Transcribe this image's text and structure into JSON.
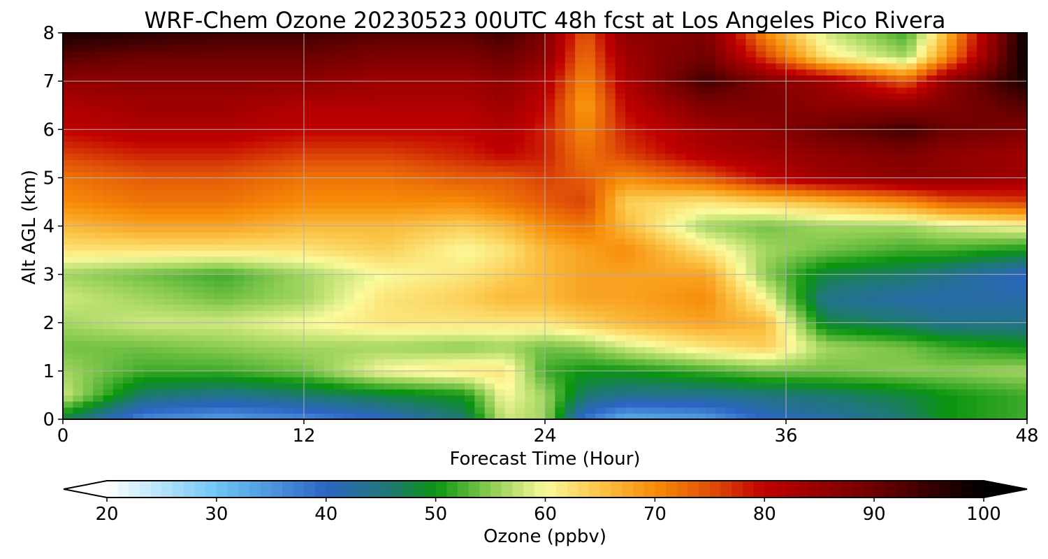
{
  "chart_data": {
    "type": "heatmap",
    "title": "WRF-Chem Ozone  20230523 00UTC 48h fcst at Los Angeles Pico Rivera",
    "xlabel": "Forecast Time (Hour)",
    "ylabel": "Alt AGL (km)",
    "xlim": [
      0,
      48
    ],
    "ylim": [
      0,
      8
    ],
    "x_ticks": [
      0,
      12,
      24,
      36,
      48
    ],
    "y_ticks": [
      0,
      1,
      2,
      3,
      4,
      5,
      6,
      7,
      8
    ],
    "grid": true,
    "colorbar": {
      "label": "Ozone  (ppbv)",
      "range": [
        20,
        100
      ],
      "ticks": [
        20,
        30,
        40,
        50,
        60,
        70,
        80,
        90,
        100
      ],
      "extend": "both",
      "stops": [
        {
          "v": 20,
          "color": "#ffffff"
        },
        {
          "v": 30,
          "color": "#6ec6f5"
        },
        {
          "v": 40,
          "color": "#2c64c4"
        },
        {
          "v": 46,
          "color": "#1e7a70"
        },
        {
          "v": 50,
          "color": "#0a9410"
        },
        {
          "v": 55,
          "color": "#8ccc52"
        },
        {
          "v": 60,
          "color": "#fbfa9b"
        },
        {
          "v": 65,
          "color": "#fbc447"
        },
        {
          "v": 70,
          "color": "#f78c08"
        },
        {
          "v": 75,
          "color": "#e05008"
        },
        {
          "v": 80,
          "color": "#c00000"
        },
        {
          "v": 90,
          "color": "#6e0000"
        },
        {
          "v": 100,
          "color": "#000000"
        }
      ]
    },
    "x": [
      0,
      4,
      8,
      12,
      16,
      20,
      22,
      24,
      26,
      28,
      32,
      35,
      38,
      42,
      44,
      48
    ],
    "y": [
      0,
      0.5,
      1,
      1.5,
      2,
      2.5,
      3,
      3.5,
      4,
      4.5,
      5,
      5.5,
      6,
      6.5,
      7,
      7.5,
      8
    ],
    "z": [
      [
        48,
        36,
        34,
        36,
        40,
        46,
        58,
        56,
        38,
        32,
        34,
        40,
        42,
        46,
        50,
        52
      ],
      [
        58,
        46,
        44,
        46,
        48,
        50,
        60,
        56,
        46,
        44,
        44,
        45,
        46,
        48,
        50,
        52
      ],
      [
        56,
        52,
        52,
        54,
        60,
        62,
        62,
        52,
        50,
        50,
        52,
        54,
        54,
        55,
        55,
        56
      ],
      [
        54,
        54,
        55,
        56,
        56,
        55,
        56,
        54,
        55,
        58,
        62,
        64,
        56,
        54,
        52,
        50
      ],
      [
        56,
        58,
        58,
        60,
        62,
        62,
        62,
        62,
        64,
        66,
        68,
        66,
        48,
        46,
        44,
        44
      ],
      [
        58,
        56,
        54,
        56,
        62,
        64,
        66,
        66,
        68,
        68,
        70,
        60,
        44,
        42,
        42,
        42
      ],
      [
        56,
        54,
        52,
        56,
        60,
        62,
        64,
        66,
        68,
        68,
        68,
        55,
        48,
        46,
        44,
        40
      ],
      [
        62,
        62,
        62,
        62,
        64,
        60,
        62,
        66,
        68,
        70,
        62,
        56,
        54,
        52,
        52,
        50
      ],
      [
        66,
        68,
        68,
        66,
        66,
        64,
        66,
        70,
        72,
        66,
        56,
        54,
        56,
        56,
        58,
        60
      ],
      [
        70,
        72,
        72,
        70,
        70,
        70,
        72,
        74,
        76,
        64,
        62,
        64,
        66,
        70,
        74,
        76
      ],
      [
        72,
        74,
        74,
        72,
        72,
        74,
        74,
        76,
        74,
        70,
        74,
        80,
        84,
        86,
        86,
        84
      ],
      [
        76,
        78,
        78,
        76,
        76,
        78,
        80,
        78,
        72,
        76,
        82,
        84,
        86,
        88,
        86,
        84
      ],
      [
        80,
        82,
        82,
        80,
        80,
        80,
        82,
        78,
        70,
        78,
        84,
        86,
        90,
        94,
        90,
        88
      ],
      [
        82,
        84,
        84,
        82,
        82,
        82,
        84,
        80,
        68,
        80,
        88,
        88,
        86,
        86,
        88,
        92
      ],
      [
        86,
        86,
        86,
        86,
        84,
        84,
        86,
        82,
        70,
        82,
        94,
        88,
        84,
        74,
        86,
        98
      ],
      [
        92,
        90,
        90,
        90,
        88,
        88,
        90,
        86,
        72,
        84,
        90,
        76,
        62,
        56,
        70,
        100
      ],
      [
        98,
        96,
        94,
        94,
        92,
        92,
        94,
        88,
        74,
        86,
        88,
        70,
        58,
        52,
        66,
        100
      ]
    ]
  }
}
